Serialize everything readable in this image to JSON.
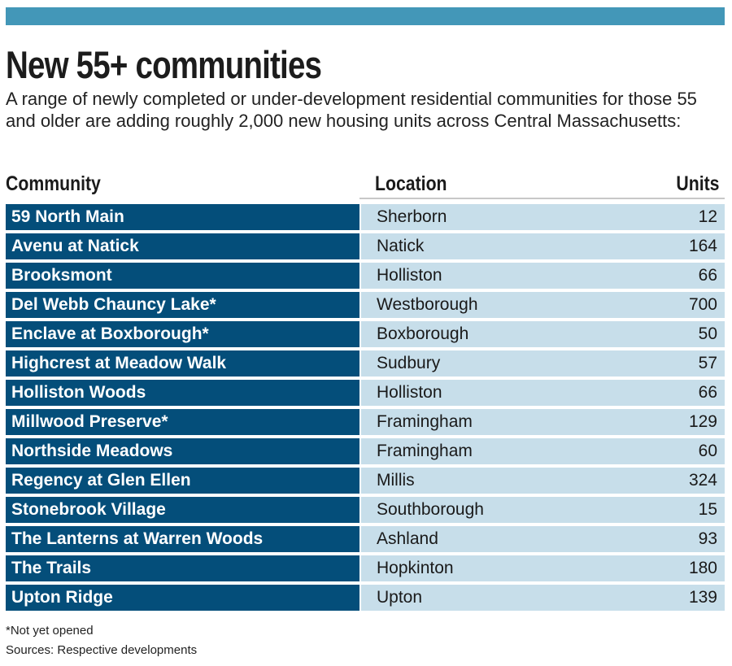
{
  "title": "New 55+ communities",
  "subtitle": "A range of newly completed or under-development residential communities for those 55 and older are adding roughly 2,000 new housing units across Central Massachusetts:",
  "footnote": "*Not yet opened",
  "source": "Sources: Respective developments",
  "colors": {
    "bar": "#4397b8",
    "community_bg": "#044e7a",
    "row_bg": "#c7deea"
  },
  "chart_data": {
    "type": "table",
    "title": "New 55+ communities",
    "columns": [
      "Community",
      "Location",
      "Units"
    ],
    "rows": [
      [
        "59 North Main",
        "Sherborn",
        "12"
      ],
      [
        "Avenu at Natick",
        "Natick",
        "164"
      ],
      [
        "Brooksmont",
        "Holliston",
        "66"
      ],
      [
        "Del Webb Chauncy Lake*",
        "Westborough",
        "700"
      ],
      [
        "Enclave at Boxborough*",
        "Boxborough",
        "50"
      ],
      [
        "Highcrest at Meadow Walk",
        "Sudbury",
        "57"
      ],
      [
        "Holliston Woods",
        "Holliston",
        "66"
      ],
      [
        "Millwood Preserve*",
        "Framingham",
        "129"
      ],
      [
        "Northside Meadows",
        "Framingham",
        "60"
      ],
      [
        "Regency at Glen Ellen",
        "Millis",
        "324"
      ],
      [
        "Stonebrook Village",
        "Southborough",
        "15"
      ],
      [
        "The Lanterns at Warren Woods",
        "Ashland",
        "93"
      ],
      [
        "The Trails",
        "Hopkinton",
        "180"
      ],
      [
        "Upton Ridge",
        "Upton",
        "139"
      ]
    ]
  }
}
